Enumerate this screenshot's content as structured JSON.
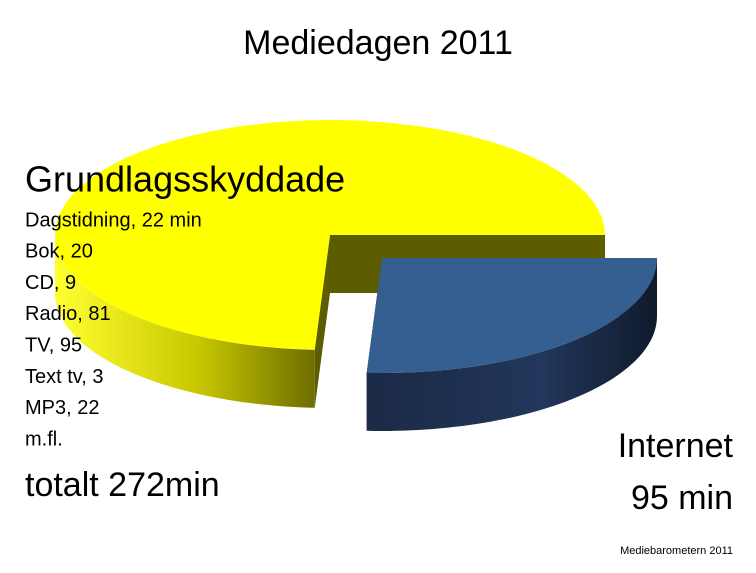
{
  "chart_data": {
    "type": "pie",
    "title": "Mediedagen 2011",
    "categories": [
      "Grundlagsskyddade",
      "Internet"
    ],
    "values": [
      272,
      95
    ],
    "value_labels": [
      "totalt 272min",
      "95 min"
    ],
    "colors": [
      "#ffff00",
      "#365f91"
    ],
    "details": [
      "Dagstidning, 22 min",
      "Bok, 20",
      "CD, 9",
      "Radio, 81",
      "TV, 95",
      "Text tv, 3",
      "MP3, 22",
      "m.fl."
    ],
    "source": "Mediebarometern 2011"
  }
}
